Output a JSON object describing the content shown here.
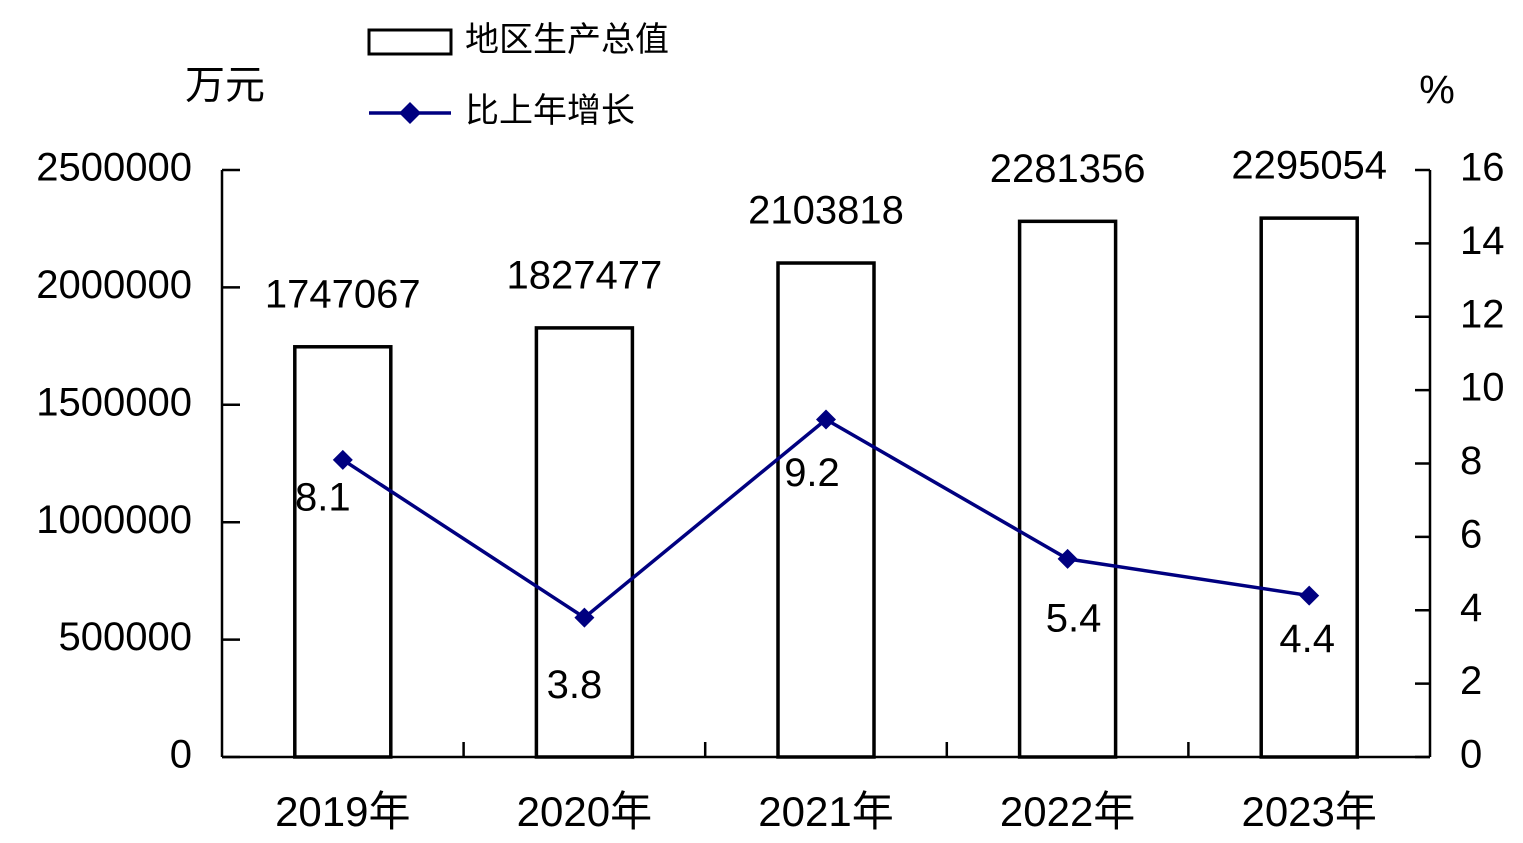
{
  "chart_data": {
    "type": "bar_line",
    "categories": [
      "2019年",
      "2020年",
      "2021年",
      "2022年",
      "2023年"
    ],
    "y_label": "万元",
    "y2_label": "%",
    "series": [
      {
        "name": "地区生产总值",
        "type": "bar",
        "color": "#000000",
        "values": [
          1747067,
          1827477,
          2103818,
          2281356,
          2295054
        ]
      },
      {
        "name": "比上年增长",
        "type": "line",
        "axis": "y2",
        "color": "#000080",
        "values": [
          8.1,
          3.8,
          9.2,
          5.4,
          4.4
        ]
      }
    ],
    "ylim": [
      0,
      2500000
    ],
    "yticks": [
      0,
      500000,
      1000000,
      1500000,
      2000000,
      2500000
    ],
    "y2lim": [
      0,
      16
    ],
    "y2ticks": [
      0,
      2,
      4,
      6,
      8,
      10,
      12,
      14,
      16
    ],
    "grid": false
  }
}
